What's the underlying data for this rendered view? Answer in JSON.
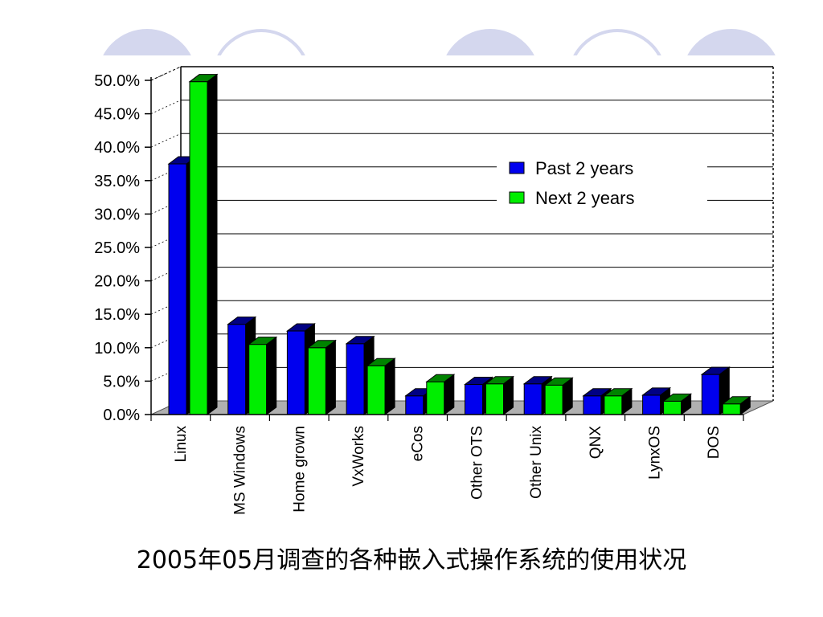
{
  "slide": {
    "caption": "2005年05月调查的各种嵌入式操作系统的使用状况",
    "decor_color": "#d4d7ee"
  },
  "chart_data": {
    "type": "bar",
    "categories": [
      "Linux",
      "MS Windows",
      "Home grown",
      "VxWorks",
      "eCos",
      "Other OTS",
      "Other Unix",
      "QNX",
      "LynxOS",
      "DOS"
    ],
    "series": [
      {
        "name": "Past 2 years",
        "color": "#0000ee",
        "values": [
          37.5,
          13.5,
          12.5,
          10.6,
          2.8,
          4.5,
          4.6,
          2.8,
          2.9,
          6.0
        ]
      },
      {
        "name": "Next 2 years",
        "color": "#00ee00",
        "values": [
          49.8,
          10.5,
          10.0,
          7.3,
          4.9,
          4.6,
          4.4,
          2.8,
          2.0,
          1.6
        ]
      }
    ],
    "ylim": [
      0,
      50
    ],
    "yticks": [
      "0.0%",
      "5.0%",
      "10.0%",
      "15.0%",
      "20.0%",
      "25.0%",
      "30.0%",
      "35.0%",
      "40.0%",
      "45.0%",
      "50.0%"
    ],
    "title": "",
    "xlabel": "",
    "ylabel": "",
    "grid": true,
    "legend_position": "upper-right"
  }
}
